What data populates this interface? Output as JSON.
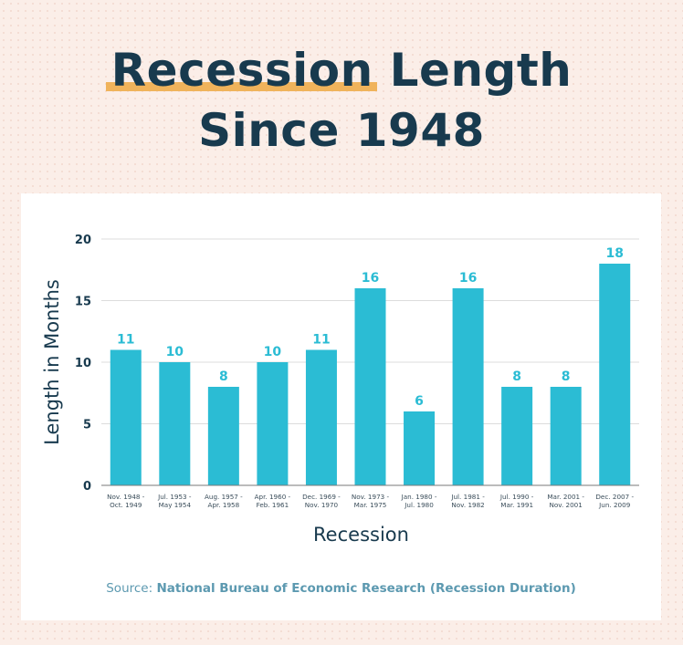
{
  "title": {
    "highlight": "Recession",
    "rest_line1": "Length",
    "line2": "Since 1948"
  },
  "colors": {
    "bar": "#2bbcd4",
    "title": "#183a4e",
    "highlight": "#f0b35b",
    "source": "#5c99b0"
  },
  "source": {
    "prefix": "Source:",
    "text": "National Bureau of Economic Research (Recession Duration)"
  },
  "chart_data": {
    "type": "bar",
    "xlabel": "Recession",
    "ylabel": "Length in Months",
    "ylim": [
      0,
      20
    ],
    "yticks": [
      0,
      5,
      10,
      15,
      20
    ],
    "grid": true,
    "categories": [
      [
        "Nov. 1948 -",
        "Oct. 1949"
      ],
      [
        "Jul. 1953 -",
        "May 1954"
      ],
      [
        "Aug. 1957 -",
        "Apr. 1958"
      ],
      [
        "Apr. 1960 -",
        "Feb. 1961"
      ],
      [
        "Dec. 1969 -",
        "Nov. 1970"
      ],
      [
        "Nov. 1973 -",
        "Mar. 1975"
      ],
      [
        "Jan. 1980 -",
        "Jul. 1980"
      ],
      [
        "Jul. 1981 -",
        "Nov. 1982"
      ],
      [
        "Jul. 1990 -",
        "Mar. 1991"
      ],
      [
        "Mar. 2001 -",
        "Nov. 2001"
      ],
      [
        "Dec. 2007 -",
        "Jun. 2009"
      ]
    ],
    "values": [
      11,
      10,
      8,
      10,
      11,
      16,
      6,
      16,
      8,
      8,
      18
    ]
  }
}
